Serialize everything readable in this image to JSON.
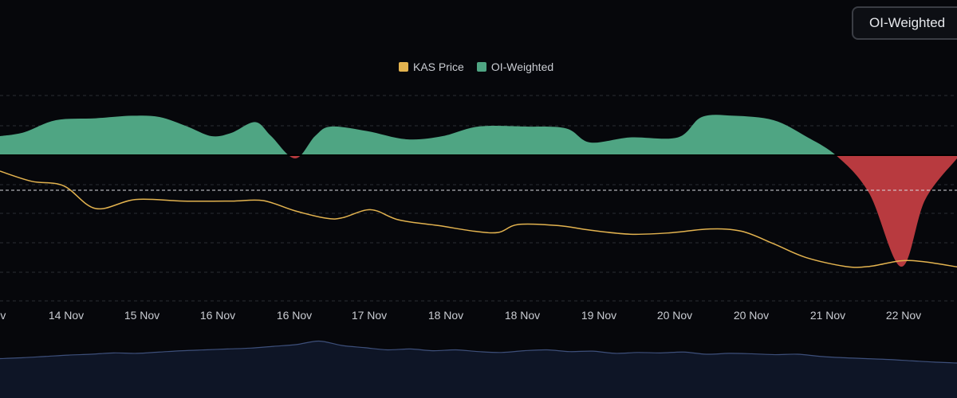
{
  "controls": {
    "mode_label": "OI-Weighted"
  },
  "colors": {
    "price": "#e3b34f",
    "positive": "#4fa583",
    "negative": "#b83a3f",
    "volume_line": "#3d4f7a",
    "volume_fill": "#0e1526",
    "grid": "#2a2d33",
    "axis_text": "#c9ccd2"
  },
  "chart_data": {
    "type": "area",
    "legend": [
      {
        "name": "KAS Price",
        "color": "#e3b34f"
      },
      {
        "name": "OI-Weighted",
        "color": "#4fa583"
      }
    ],
    "x_tick_labels": [
      "ov",
      "14 Nov",
      "15 Nov",
      "16 Nov",
      "16 Nov",
      "17 Nov",
      "18 Nov",
      "18 Nov",
      "19 Nov",
      "20 Nov",
      "20 Nov",
      "21 Nov",
      "22 Nov"
    ],
    "grid": "horizontal-dashed",
    "oi_weighted": [
      [
        0,
        0.3
      ],
      [
        30,
        0.36
      ],
      [
        70,
        0.55
      ],
      [
        120,
        0.58
      ],
      [
        165,
        0.62
      ],
      [
        200,
        0.6
      ],
      [
        235,
        0.45
      ],
      [
        265,
        0.3
      ],
      [
        290,
        0.35
      ],
      [
        320,
        0.52
      ],
      [
        340,
        0.3
      ],
      [
        370,
        -0.05
      ],
      [
        395,
        0.3
      ],
      [
        415,
        0.45
      ],
      [
        460,
        0.38
      ],
      [
        510,
        0.25
      ],
      [
        555,
        0.3
      ],
      [
        600,
        0.45
      ],
      [
        660,
        0.45
      ],
      [
        710,
        0.42
      ],
      [
        740,
        0.2
      ],
      [
        790,
        0.28
      ],
      [
        850,
        0.28
      ],
      [
        880,
        0.6
      ],
      [
        920,
        0.62
      ],
      [
        970,
        0.55
      ],
      [
        1010,
        0.3
      ],
      [
        1050,
        -0.02
      ],
      [
        1090,
        -0.6
      ],
      [
        1130,
        -1.75
      ],
      [
        1160,
        -0.7
      ],
      [
        1200,
        -0.05
      ]
    ],
    "kas_price": [
      [
        0,
        0.164
      ],
      [
        40,
        0.1595
      ],
      [
        80,
        0.1575
      ],
      [
        120,
        0.1475
      ],
      [
        170,
        0.1515
      ],
      [
        230,
        0.1508
      ],
      [
        290,
        0.1508
      ],
      [
        330,
        0.151
      ],
      [
        370,
        0.1465
      ],
      [
        410,
        0.1432
      ],
      [
        430,
        0.1435
      ],
      [
        465,
        0.147
      ],
      [
        500,
        0.1425
      ],
      [
        550,
        0.14
      ],
      [
        595,
        0.1375
      ],
      [
        625,
        0.137
      ],
      [
        650,
        0.1405
      ],
      [
        700,
        0.14
      ],
      [
        740,
        0.138
      ],
      [
        790,
        0.1362
      ],
      [
        840,
        0.1368
      ],
      [
        890,
        0.1385
      ],
      [
        930,
        0.1375
      ],
      [
        970,
        0.132
      ],
      [
        1010,
        0.126
      ],
      [
        1060,
        0.122
      ],
      [
        1090,
        0.122
      ],
      [
        1130,
        0.1245
      ],
      [
        1160,
        0.124
      ],
      [
        1200,
        0.1218
      ]
    ],
    "volume": [
      0.5,
      0.52,
      0.55,
      0.58,
      0.6,
      0.63,
      0.62,
      0.65,
      0.68,
      0.7,
      0.72,
      0.74,
      0.78,
      0.82,
      0.9,
      0.8,
      0.75,
      0.7,
      0.72,
      0.68,
      0.7,
      0.66,
      0.64,
      0.68,
      0.7,
      0.66,
      0.67,
      0.62,
      0.64,
      0.63,
      0.65,
      0.6,
      0.62,
      0.61,
      0.59,
      0.6,
      0.55,
      0.52,
      0.5,
      0.48,
      0.45,
      0.42,
      0.4
    ]
  }
}
